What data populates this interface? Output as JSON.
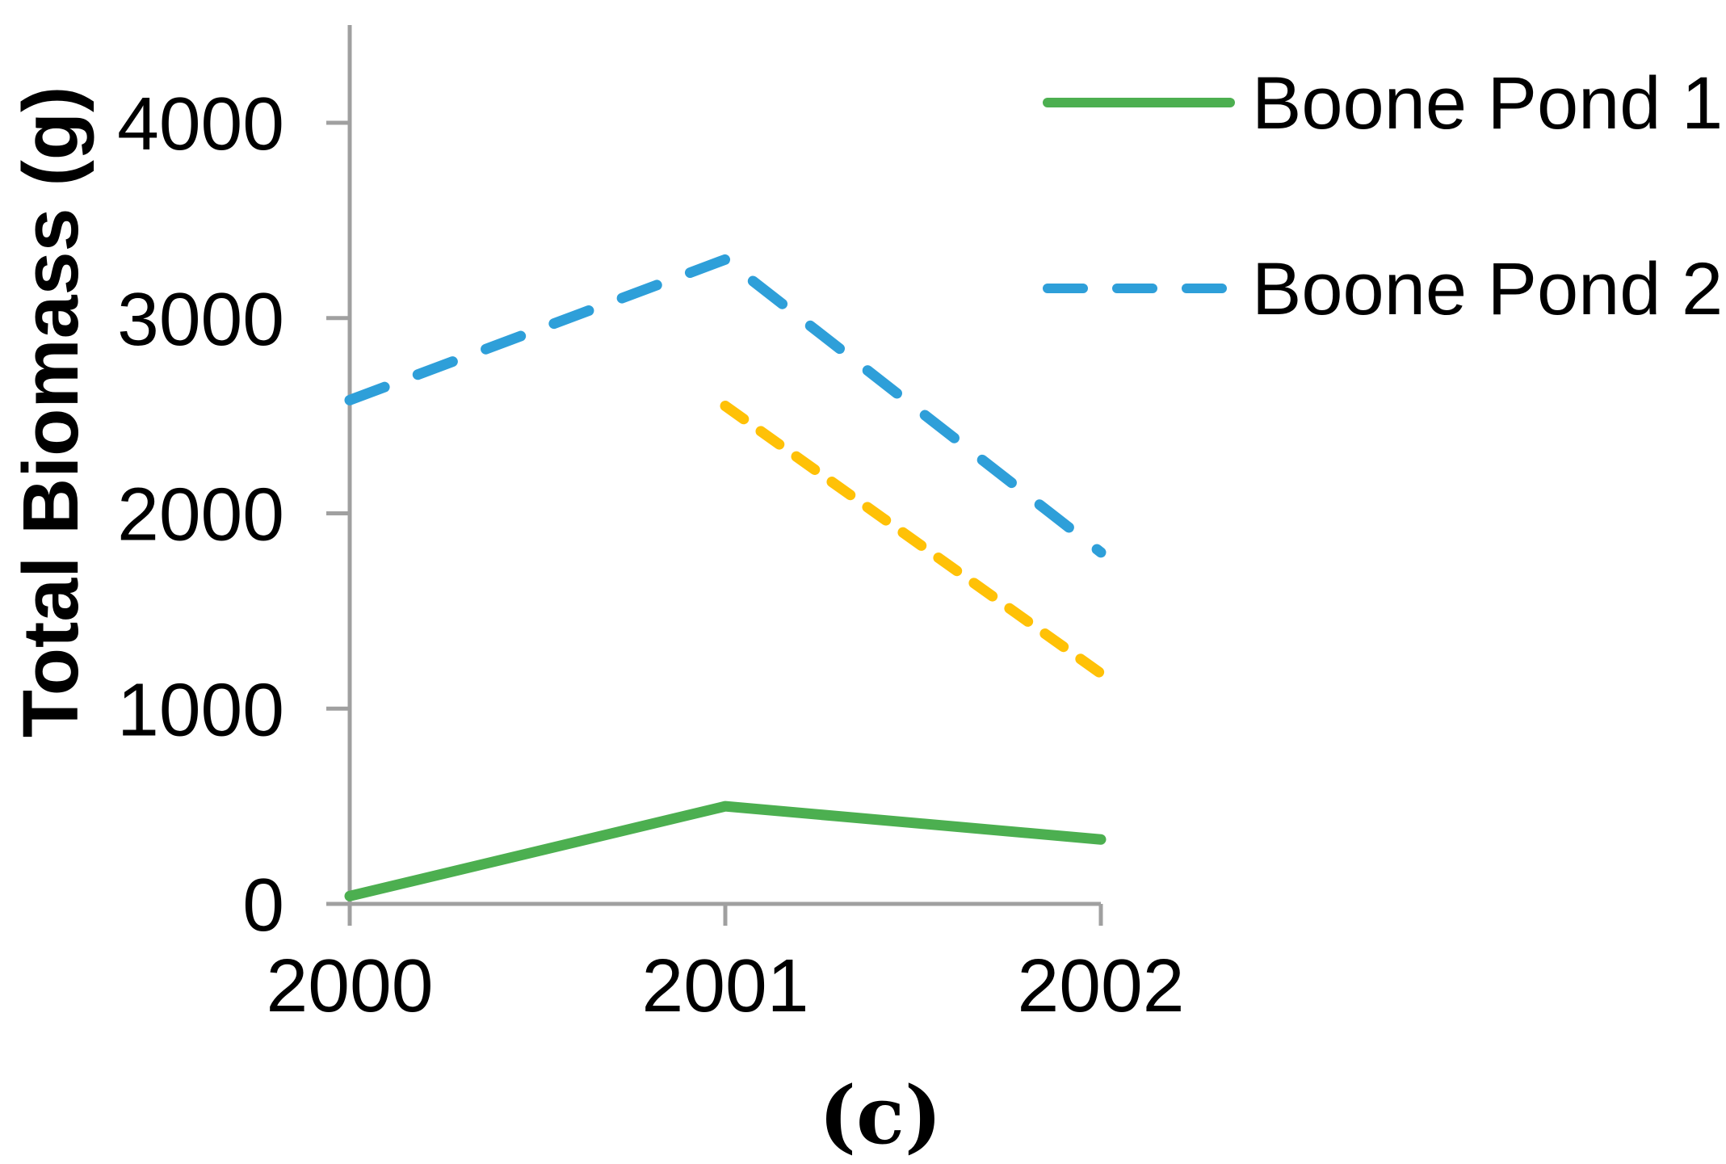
{
  "chart_data": {
    "type": "line",
    "title": "",
    "xlabel": "",
    "ylabel": "Total Biomass (g)",
    "caption": "(c)",
    "x": [
      2000,
      2001,
      2002
    ],
    "xtick_labels": [
      "2000",
      "2001",
      "2002"
    ],
    "yticks": [
      0,
      1000,
      2000,
      3000,
      4000
    ],
    "ytick_labels": [
      "0",
      "1000",
      "2000",
      "3000",
      "4000"
    ],
    "ylim": [
      0,
      4500
    ],
    "grid": false,
    "background_color": "#ffffff",
    "axis_color": "#A0A0A0",
    "text_color": "#000000",
    "legend_position": "top-right",
    "series": [
      {
        "name": "Boone Pond 1",
        "color": "#4CAF50",
        "line_style": "solid",
        "x": [
          2000,
          2001,
          2002
        ],
        "values": [
          40,
          500,
          330
        ],
        "in_legend": true
      },
      {
        "name": "Boone Pond 2",
        "color": "#2E9FD9",
        "line_style": "dashed",
        "x": [
          2000,
          2001,
          2002
        ],
        "values": [
          2580,
          3300,
          1800
        ],
        "in_legend": true
      },
      {
        "name": "",
        "color": "#FFC107",
        "line_style": "dashed",
        "x": [
          2001,
          2002
        ],
        "values": [
          2550,
          1180
        ],
        "in_legend": false
      }
    ],
    "legend": {
      "items": [
        {
          "label": "Boone Pond 1",
          "color": "#4CAF50",
          "line_style": "solid"
        },
        {
          "label": "Boone Pond 2",
          "color": "#2E9FD9",
          "line_style": "dashed"
        }
      ]
    }
  }
}
